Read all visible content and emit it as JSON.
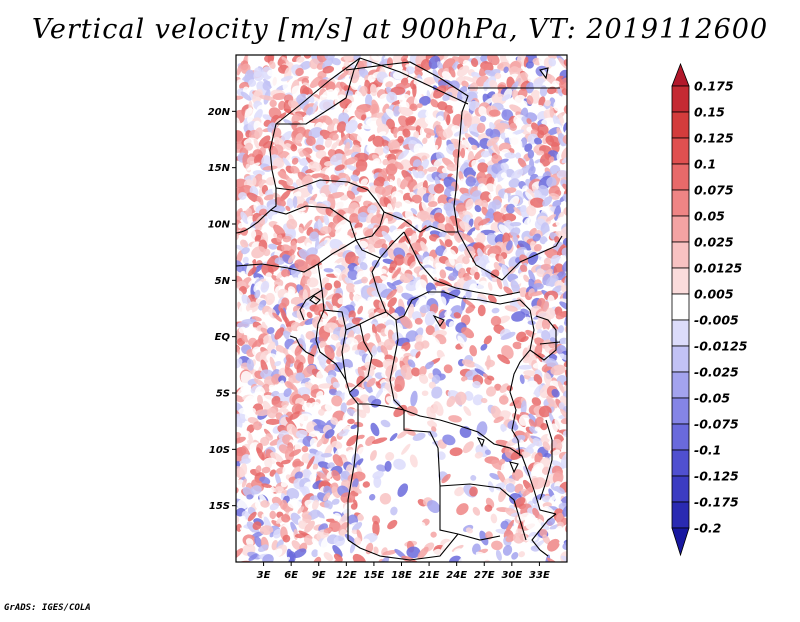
{
  "title": "Vertical velocity [m/s] at 900hPa, VT: 2019112600",
  "footer": "GrADS: IGES/COLA",
  "map": {
    "lon_range": [
      0,
      36
    ],
    "lat_range": [
      -20,
      25
    ],
    "x_ticks": [
      "3E",
      "6E",
      "9E",
      "12E",
      "15E",
      "18E",
      "21E",
      "24E",
      "27E",
      "30E",
      "33E"
    ],
    "x_tick_values": [
      3,
      6,
      9,
      12,
      15,
      18,
      21,
      24,
      27,
      30,
      33
    ],
    "y_ticks": [
      "20N",
      "15N",
      "10N",
      "5N",
      "EQ",
      "5S",
      "10S",
      "15S"
    ],
    "y_tick_values": [
      20,
      15,
      10,
      5,
      0,
      -5,
      -10,
      -15
    ]
  },
  "colorbar": {
    "labels": [
      "0.175",
      "0.15",
      "0.125",
      "0.1",
      "0.075",
      "0.05",
      "0.025",
      "0.0125",
      "0.005",
      "-0.005",
      "-0.0125",
      "-0.025",
      "-0.05",
      "-0.075",
      "-0.1",
      "-0.125",
      "-0.175",
      "-0.2"
    ],
    "colors": [
      "#b2182b",
      "#c42a33",
      "#d33c3c",
      "#e05050",
      "#e86a6a",
      "#ef8585",
      "#f4a3a3",
      "#f8c2c2",
      "#fbdcdc",
      "#ffffff",
      "#dcdcfb",
      "#c2c2f5",
      "#a3a3ee",
      "#8585e6",
      "#6a6adc",
      "#5050d0",
      "#3c3cc2",
      "#2a2ab2",
      "#1818a0"
    ]
  }
}
